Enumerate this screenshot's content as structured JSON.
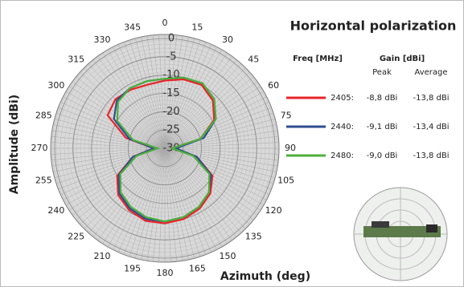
{
  "chart_data": {
    "type": "polar",
    "title": "Horizontal polarization",
    "xlabel": "Azimuth (deg)",
    "ylabel": "Amplitude (dBi)",
    "x": [
      0,
      15,
      30,
      45,
      60,
      75,
      90,
      105,
      120,
      135,
      150,
      165,
      180,
      195,
      210,
      225,
      240,
      255,
      270,
      285,
      300,
      315,
      330,
      345
    ],
    "xticks": [
      0,
      15,
      30,
      45,
      60,
      75,
      90,
      105,
      120,
      135,
      150,
      165,
      180,
      195,
      210,
      225,
      240,
      255,
      270,
      285,
      300,
      315,
      330,
      345
    ],
    "ylim": [
      -30,
      0
    ],
    "yticks": [
      0,
      -5,
      -10,
      -15,
      -20,
      -25,
      -30
    ],
    "legend_headers": {
      "freq": "Freq [MHz]",
      "gain": "Gain [dBi]",
      "peak": "Peak",
      "average": "Average"
    },
    "series": [
      {
        "name": "2405:",
        "color": "#e8232a",
        "peak": "-8,8 dBi",
        "average": "-13,8 dBi",
        "values": [
          -11.5,
          -10.5,
          -10,
          -11.5,
          -14.5,
          -20,
          -28,
          -21,
          -15,
          -12.5,
          -11,
          -10,
          -9.5,
          -9.5,
          -10.5,
          -12,
          -15,
          -21,
          -27,
          -19,
          -12,
          -11,
          -11.5,
          -12
        ]
      },
      {
        "name": "2440:",
        "color": "#2e4d8f",
        "peak": "-9,1 dBi",
        "average": "-13,4 dBi",
        "values": [
          -11,
          -10,
          -9.5,
          -11,
          -14,
          -19,
          -27,
          -21,
          -15.5,
          -13,
          -11.5,
          -10.5,
          -10,
          -10,
          -11,
          -12.5,
          -15.5,
          -21,
          -27,
          -20,
          -14,
          -11.5,
          -11,
          -11
        ]
      },
      {
        "name": "2480:",
        "color": "#4caf3a",
        "peak": "-9,0 dBi",
        "average": "-13,8 dBi",
        "values": [
          -11,
          -10,
          -9.5,
          -11,
          -14,
          -20,
          -28,
          -22,
          -16,
          -13,
          -11.5,
          -10.5,
          -10,
          -10.5,
          -11.5,
          -13,
          -16,
          -22,
          -28,
          -21,
          -15,
          -12,
          -11,
          -11
        ]
      }
    ]
  }
}
